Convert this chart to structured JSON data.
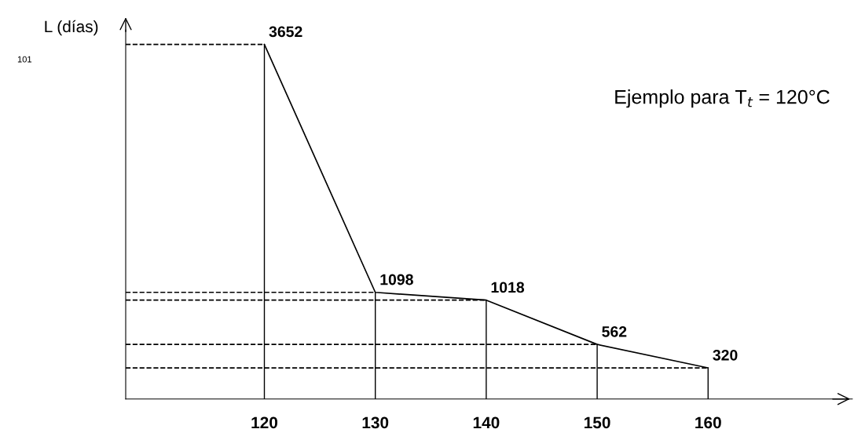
{
  "chart_data": {
    "type": "line",
    "ylabel": "L (días)",
    "x": [
      120,
      130,
      140,
      150,
      160
    ],
    "series": [
      {
        "color": "#000000",
        "values": [
          3652,
          1098,
          1018,
          562,
          320
        ]
      }
    ],
    "data_labels": true,
    "marker": "none",
    "line_style": "solid",
    "grid": false,
    "legend": false,
    "tick_labels": "x",
    "xlim": [
      107.5,
      173
    ],
    "xticks": [
      120,
      130,
      140,
      150,
      160
    ],
    "ylim": [
      0,
      3800
    ],
    "ref_lines": [
      {
        "axis": "x",
        "value": 120,
        "line_style": "solid"
      },
      {
        "axis": "x",
        "value": 130,
        "line_style": "solid"
      },
      {
        "axis": "x",
        "value": 140,
        "line_style": "solid"
      },
      {
        "axis": "x",
        "value": 150,
        "line_style": "solid"
      },
      {
        "axis": "x",
        "value": 160,
        "line_style": "solid"
      },
      {
        "axis": "y",
        "value": 3652,
        "line_style": "dashed"
      },
      {
        "axis": "y",
        "value": 1098,
        "line_style": "dashed"
      },
      {
        "axis": "y",
        "value": 1018,
        "line_style": "dashed"
      },
      {
        "axis": "y",
        "value": 562,
        "line_style": "dashed"
      },
      {
        "axis": "y",
        "value": 320,
        "line_style": "dashed"
      }
    ],
    "annotations": [
      "Ejemplo para T$_{t}$ = 120°C",
      "101"
    ]
  }
}
